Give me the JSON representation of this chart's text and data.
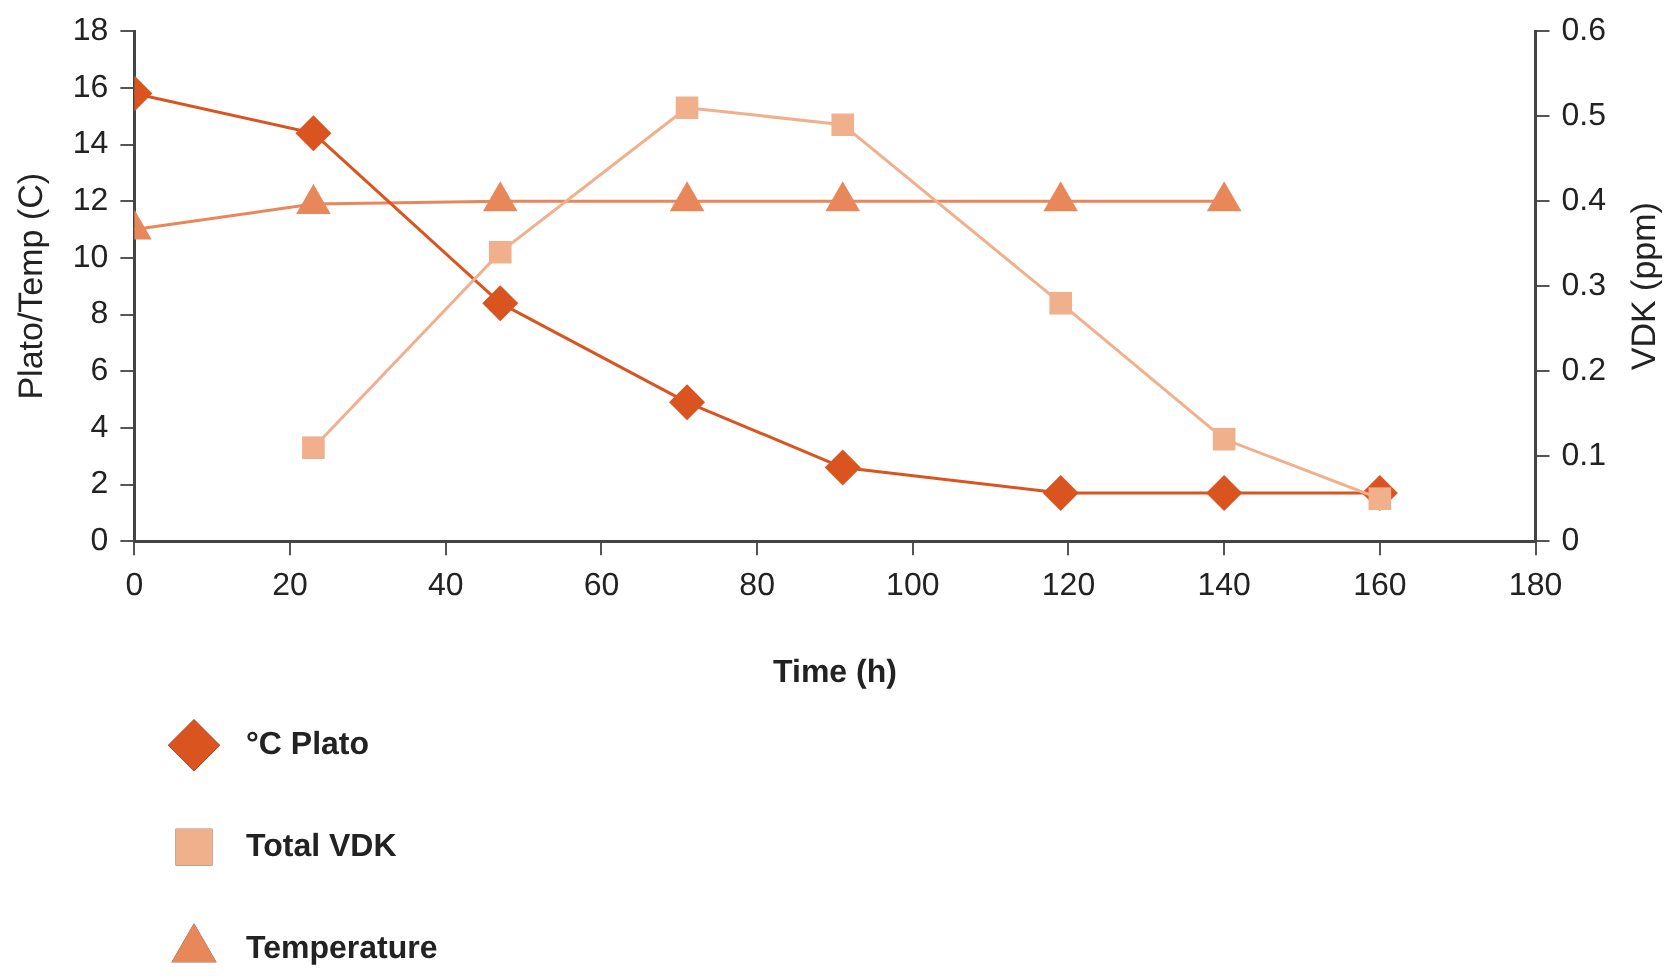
{
  "chart_data": {
    "type": "line",
    "xlabel": "Time (h)",
    "ylabel": "Plato/Temp (C)",
    "y2label": "VDK (ppm)",
    "xlim": [
      0,
      180
    ],
    "xticks": [
      0,
      20,
      40,
      60,
      80,
      100,
      120,
      140,
      160,
      180
    ],
    "ylim": [
      0,
      18
    ],
    "yticks": [
      0,
      2,
      4,
      6,
      8,
      10,
      12,
      14,
      16,
      18
    ],
    "y2lim": [
      0,
      0.6
    ],
    "y2ticks": [
      0,
      0.1,
      0.2,
      0.3,
      0.4,
      0.5,
      0.6
    ],
    "grid": false,
    "legend": "bottom left",
    "line_style": "solid",
    "series": [
      {
        "name": "°C Plato",
        "color": "#d9541e",
        "marker": "diamond",
        "x": [
          0,
          23,
          47,
          71,
          91,
          119,
          140,
          160
        ],
        "values": [
          15.8,
          14.4,
          8.4,
          4.9,
          2.6,
          1.7,
          1.7,
          1.7
        ]
      },
      {
        "name": "Total VDK",
        "color": "#f0b08c",
        "marker": "square",
        "axis": "y2",
        "x": [
          23,
          47,
          71,
          91,
          119,
          140,
          160
        ],
        "values": [
          0.11,
          0.34,
          0.51,
          0.49,
          0.28,
          0.12,
          0.05
        ]
      },
      {
        "name": "Temperature",
        "color": "#e8875a",
        "marker": "triangle",
        "x": [
          0,
          23,
          47,
          71,
          91,
          119,
          140
        ],
        "values": [
          11.0,
          11.9,
          12.0,
          12.0,
          12.0,
          12.0,
          12.0
        ]
      }
    ]
  }
}
